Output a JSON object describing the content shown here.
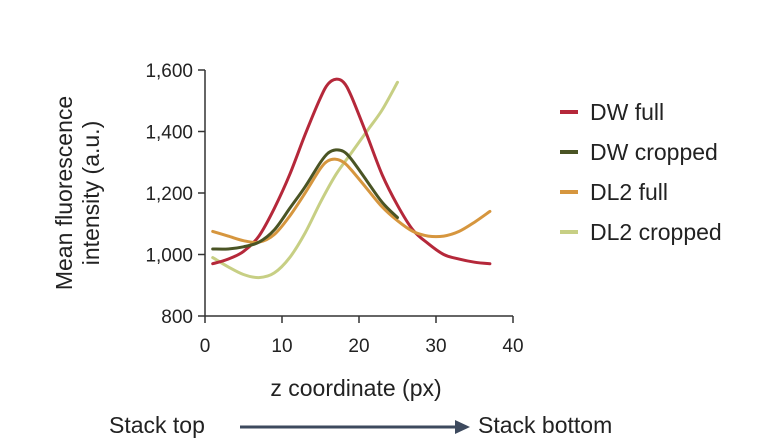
{
  "chart_data": {
    "type": "line",
    "xlabel": "z coordinate (px)",
    "ylabel": "Mean fluorescence intensity (a.u.)",
    "ylabel_lines": [
      "Mean fluorescence",
      "intensity (a.u.)"
    ],
    "xlim": [
      0,
      40
    ],
    "ylim": [
      800,
      1600
    ],
    "x_ticks": [
      0,
      10,
      20,
      30,
      40
    ],
    "y_ticks": [
      800,
      1000,
      1200,
      1400,
      1600
    ],
    "x_tick_labels": [
      "0",
      "10",
      "20",
      "30",
      "40"
    ],
    "y_tick_labels": [
      "800",
      "1,000",
      "1,200",
      "1,400",
      "1,600"
    ],
    "grid": false,
    "legend_position": "right",
    "series": [
      {
        "name": "DW full",
        "color": "#b5283a",
        "x": [
          1,
          3,
          5,
          7,
          9,
          11,
          13,
          15,
          16,
          17,
          18,
          19,
          21,
          23,
          25,
          27,
          29,
          31,
          33,
          35,
          37
        ],
        "y": [
          970,
          985,
          1010,
          1060,
          1150,
          1260,
          1390,
          1510,
          1555,
          1570,
          1560,
          1515,
          1390,
          1260,
          1160,
          1080,
          1035,
          1000,
          985,
          975,
          970
        ]
      },
      {
        "name": "DW cropped",
        "color": "#4a5424",
        "x": [
          1,
          3,
          5,
          7,
          9,
          11,
          13,
          15,
          16,
          17,
          18,
          19,
          21,
          23,
          25
        ],
        "y": [
          1018,
          1018,
          1025,
          1040,
          1080,
          1150,
          1220,
          1300,
          1330,
          1340,
          1335,
          1310,
          1240,
          1170,
          1120
        ]
      },
      {
        "name": "DL2 full",
        "color": "#d6963e",
        "x": [
          1,
          3,
          5,
          7,
          9,
          11,
          13,
          15,
          16,
          17,
          18,
          19,
          21,
          23,
          25,
          27,
          29,
          31,
          33,
          35,
          37
        ],
        "y": [
          1075,
          1060,
          1045,
          1040,
          1065,
          1125,
          1200,
          1280,
          1305,
          1310,
          1300,
          1275,
          1215,
          1155,
          1110,
          1075,
          1060,
          1060,
          1075,
          1105,
          1140
        ]
      },
      {
        "name": "DL2 cropped",
        "color": "#c7cf84",
        "x": [
          1,
          3,
          5,
          7,
          9,
          11,
          13,
          15,
          17,
          19,
          21,
          23,
          25
        ],
        "y": [
          990,
          960,
          935,
          925,
          940,
          990,
          1070,
          1170,
          1260,
          1330,
          1400,
          1470,
          1560
        ]
      }
    ]
  },
  "footer": {
    "left_label": "Stack top",
    "right_label": "Stack bottom"
  }
}
